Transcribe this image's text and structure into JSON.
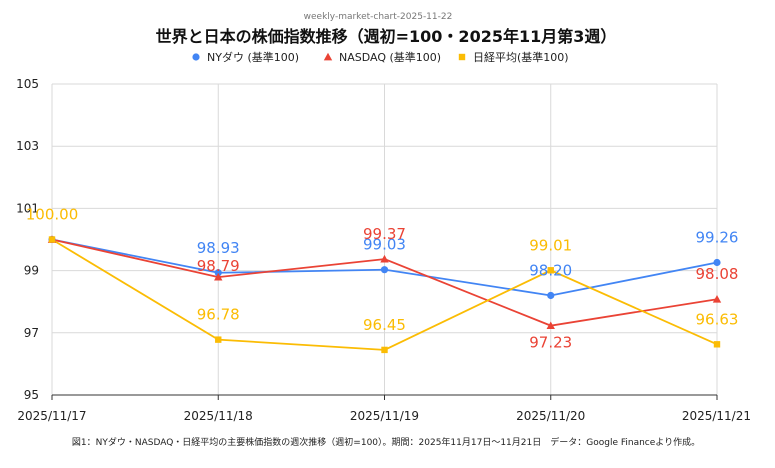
{
  "chart_data": {
    "type": "line",
    "source_label": "weekly-market-chart-2025-11-22",
    "title": "世界と日本の株価指数推移（週初=100・2025年11月第3週）",
    "categories": [
      "2025/11/17",
      "2025/11/18",
      "2025/11/19",
      "2025/11/20",
      "2025/11/21"
    ],
    "ylim": [
      95,
      105
    ],
    "yticks": [
      95,
      97,
      99,
      101,
      103,
      105
    ],
    "grid": true,
    "legend_position": "top",
    "series": [
      {
        "name": "NYダウ (基準100)",
        "color": "#4285f4",
        "marker": "circle",
        "values": [
          100.0,
          98.93,
          99.03,
          98.2,
          99.26
        ],
        "labels": [
          "",
          "98.93",
          "99.03",
          "98.20",
          "99.26"
        ]
      },
      {
        "name": "NASDAQ (基準100)",
        "color": "#ea4335",
        "marker": "triangle",
        "values": [
          100.0,
          98.79,
          99.37,
          97.23,
          98.08
        ],
        "labels": [
          "",
          "98.79",
          "99.37",
          "97.23",
          "98.08"
        ]
      },
      {
        "name": "日経平均(基準100)",
        "color": "#fbbc04",
        "marker": "square",
        "values": [
          100.0,
          96.78,
          96.45,
          99.01,
          96.63
        ],
        "labels": [
          "100.00",
          "96.78",
          "96.45",
          "99.01",
          "96.63"
        ]
      }
    ],
    "caption": "図1：NYダウ・NASDAQ・日経平均の主要株価指数の週次推移（週初=100）。期間：2025年11月17日〜11月21日　データ：Google Financeより作成。"
  }
}
